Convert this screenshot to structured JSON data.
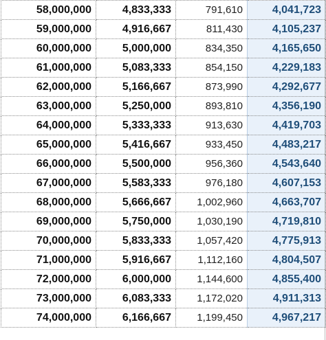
{
  "colors": {
    "highlight_column_text": "#1f4e79",
    "highlight_column_background": "#e9f1fa"
  },
  "rows": [
    [
      "58,000,000",
      "4,833,333",
      "791,610",
      "4,041,723"
    ],
    [
      "59,000,000",
      "4,916,667",
      "811,430",
      "4,105,237"
    ],
    [
      "60,000,000",
      "5,000,000",
      "834,350",
      "4,165,650"
    ],
    [
      "61,000,000",
      "5,083,333",
      "854,150",
      "4,229,183"
    ],
    [
      "62,000,000",
      "5,166,667",
      "873,990",
      "4,292,677"
    ],
    [
      "63,000,000",
      "5,250,000",
      "893,810",
      "4,356,190"
    ],
    [
      "64,000,000",
      "5,333,333",
      "913,630",
      "4,419,703"
    ],
    [
      "65,000,000",
      "5,416,667",
      "933,450",
      "4,483,217"
    ],
    [
      "66,000,000",
      "5,500,000",
      "956,360",
      "4,543,640"
    ],
    [
      "67,000,000",
      "5,583,333",
      "976,180",
      "4,607,153"
    ],
    [
      "68,000,000",
      "5,666,667",
      "1,002,960",
      "4,663,707"
    ],
    [
      "69,000,000",
      "5,750,000",
      "1,030,190",
      "4,719,810"
    ],
    [
      "70,000,000",
      "5,833,333",
      "1,057,420",
      "4,775,913"
    ],
    [
      "71,000,000",
      "5,916,667",
      "1,112,160",
      "4,804,507"
    ],
    [
      "72,000,000",
      "6,000,000",
      "1,144,600",
      "4,855,400"
    ],
    [
      "73,000,000",
      "6,083,333",
      "1,172,020",
      "4,911,313"
    ],
    [
      "74,000,000",
      "6,166,667",
      "1,199,450",
      "4,967,217"
    ]
  ]
}
